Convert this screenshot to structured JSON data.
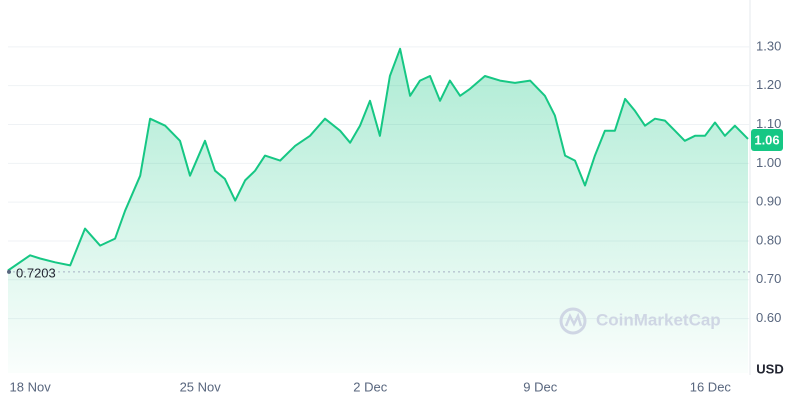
{
  "chart_data": {
    "type": "line",
    "watermark": "CoinMarketCap",
    "currency": "USD",
    "color": "#16c784",
    "reference": {
      "value": 0.7203,
      "label": "0.7203"
    },
    "current_price": 1.06,
    "x": [
      -0.91,
      0,
      0.41,
      1.03,
      1.65,
      2.26,
      2.88,
      3.5,
      3.91,
      4.53,
      4.94,
      5.56,
      6.17,
      6.58,
      7.2,
      7.61,
      8.02,
      8.44,
      8.85,
      9.26,
      9.67,
      10.29,
      10.91,
      11.52,
      12.14,
      12.76,
      13.17,
      13.58,
      13.99,
      14.4,
      14.81,
      15.23,
      15.64,
      16.05,
      16.46,
      16.87,
      17.28,
      17.7,
      18.11,
      18.72,
      19.34,
      19.96,
      20.58,
      21.19,
      21.6,
      22.02,
      22.43,
      22.84,
      23.25,
      23.66,
      24.07,
      24.49,
      24.9,
      25.31,
      25.72,
      26.13,
      26.54,
      26.95,
      27.37,
      27.78,
      28.19,
      28.6,
      29.01,
      29.55
    ],
    "values": [
      0.724,
      0.763,
      0.755,
      0.745,
      0.737,
      0.832,
      0.788,
      0.806,
      0.878,
      0.968,
      1.115,
      1.097,
      1.058,
      0.968,
      1.058,
      0.981,
      0.96,
      0.904,
      0.956,
      0.981,
      1.02,
      1.007,
      1.045,
      1.071,
      1.115,
      1.084,
      1.053,
      1.097,
      1.161,
      1.071,
      1.225,
      1.295,
      1.174,
      1.213,
      1.225,
      1.161,
      1.213,
      1.174,
      1.192,
      1.225,
      1.213,
      1.207,
      1.213,
      1.174,
      1.123,
      1.02,
      1.007,
      0.943,
      1.02,
      1.084,
      1.084,
      1.166,
      1.135,
      1.097,
      1.115,
      1.11,
      1.084,
      1.058,
      1.071,
      1.071,
      1.105,
      1.071,
      1.097,
      1.063
    ],
    "xlim": [
      -0.91,
      29.55
    ],
    "xticks": [
      {
        "value": 0,
        "label": "18 Nov"
      },
      {
        "value": 7,
        "label": "25 Nov"
      },
      {
        "value": 14,
        "label": "2 Dec"
      },
      {
        "value": 21,
        "label": "9 Dec"
      },
      {
        "value": 28,
        "label": "16 Dec"
      }
    ],
    "ylim": [
      0.46,
      1.4
    ],
    "yticks": [
      {
        "value": 0.6,
        "label": "0.60"
      },
      {
        "value": 0.7,
        "label": "0.70"
      },
      {
        "value": 0.8,
        "label": "0.80"
      },
      {
        "value": 0.9,
        "label": "0.90"
      },
      {
        "value": 1.0,
        "label": "1.00"
      },
      {
        "value": 1.1,
        "label": "1.10"
      },
      {
        "value": 1.2,
        "label": "1.20"
      },
      {
        "value": 1.3,
        "label": "1.30"
      }
    ],
    "grid": true
  }
}
